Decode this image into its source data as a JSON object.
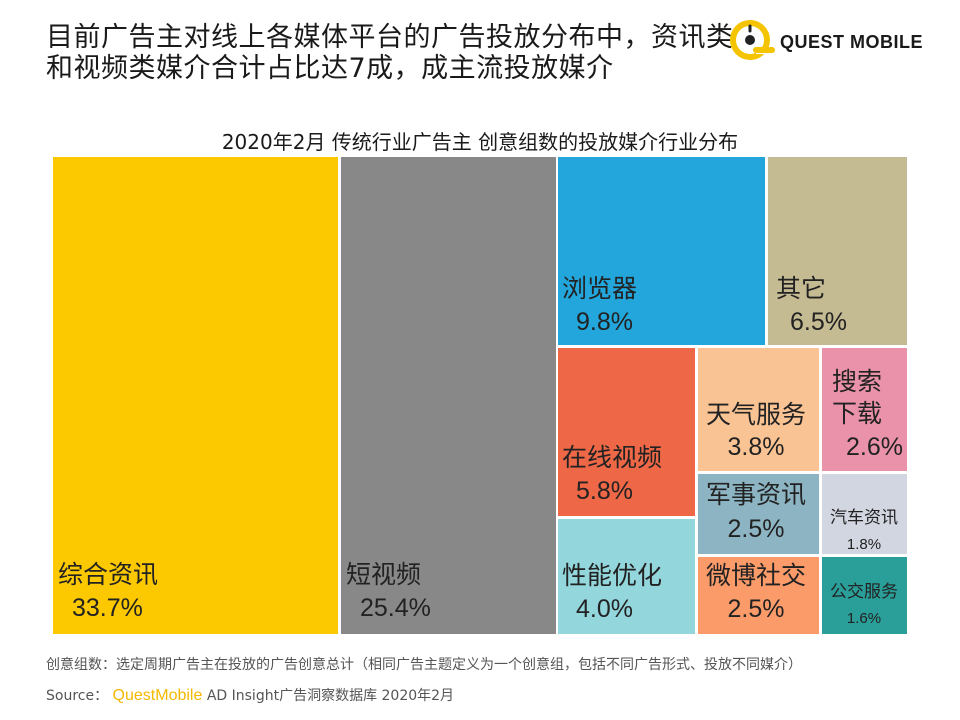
{
  "headline": "目前广告主对线上各媒体平台的广告投放分布中，资讯类和视频类媒介合计占比达7成，成主流投放媒介",
  "logo": {
    "text": "QUEST MOBILE",
    "accent": "#f5c400"
  },
  "footnote": "创意组数：选定周期广告主在投放的广告创意总计（相同广告主题定义为一个创意组，包括不同广告形式、投放不同媒介）",
  "source": {
    "label": "Source：",
    "brand": "QuestMobile",
    "rest": "AD Insight广告洞察数据库 2020年2月"
  },
  "chart_data": {
    "type": "treemap",
    "title": "2020年2月 传统行业广告主 创意组数的投放媒介行业分布",
    "unit": "%",
    "items": [
      {
        "name": "综合资讯",
        "value": 33.7,
        "label": "33.7%",
        "color": "#fcc800",
        "text_color": "#222222"
      },
      {
        "name": "短视频",
        "value": 25.4,
        "label": "25.4%",
        "color": "#888888",
        "text_color": "#222222"
      },
      {
        "name": "浏览器",
        "value": 9.8,
        "label": "9.8%",
        "color": "#22a6dc",
        "text_color": "#222222"
      },
      {
        "name": "其它",
        "value": 6.5,
        "label": "6.5%",
        "color": "#c5bb93",
        "text_color": "#222222"
      },
      {
        "name": "在线视频",
        "value": 5.8,
        "label": "5.8%",
        "color": "#ee6746",
        "text_color": "#222222"
      },
      {
        "name": "性能优化",
        "value": 4.0,
        "label": "4.0%",
        "color": "#93d6dc",
        "text_color": "#222222"
      },
      {
        "name": "天气服务",
        "value": 3.8,
        "label": "3.8%",
        "color": "#fac394",
        "text_color": "#222222"
      },
      {
        "name": "搜索下载",
        "value": 2.6,
        "label": "2.6%",
        "color": "#e992a9",
        "text_color": "#222222"
      },
      {
        "name": "军事资讯",
        "value": 2.5,
        "label": "2.5%",
        "color": "#8cb4c2",
        "text_color": "#222222"
      },
      {
        "name": "微博社交",
        "value": 2.5,
        "label": "2.5%",
        "color": "#fb9b6a",
        "text_color": "#222222"
      },
      {
        "name": "汽车资讯",
        "value": 1.8,
        "label": "1.8%",
        "color": "#d2d6e0",
        "text_color": "#222222"
      },
      {
        "name": "公交服务",
        "value": 1.6,
        "label": "1.6%",
        "color": "#2a9e98",
        "text_color": "#222222"
      }
    ]
  }
}
